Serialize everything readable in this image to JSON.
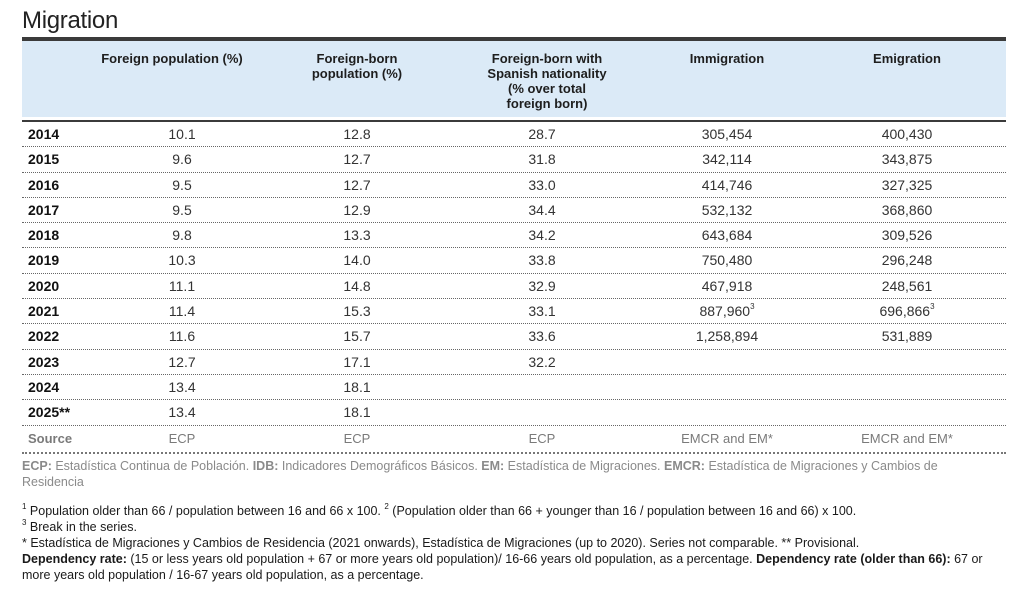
{
  "title": "Migration",
  "headers": {
    "foreign_population": "Foreign population (%)",
    "foreign_born_1": "Foreign-born",
    "foreign_born_2": "population (%)",
    "spanish_1": "Foreign-born with",
    "spanish_2": "Spanish nationality",
    "spanish_3": "(% over total",
    "spanish_4": "foreign born)",
    "immigration": "Immigration",
    "emigration": "Emigration"
  },
  "rows": [
    {
      "year": "2014",
      "fp": "10.1",
      "fb": "12.8",
      "sn": "28.7",
      "im": "305,454",
      "em": "400,430"
    },
    {
      "year": "2015",
      "fp": "9.6",
      "fb": "12.7",
      "sn": "31.8",
      "im": "342,114",
      "em": "343,875"
    },
    {
      "year": "2016",
      "fp": "9.5",
      "fb": "12.7",
      "sn": "33.0",
      "im": "414,746",
      "em": "327,325"
    },
    {
      "year": "2017",
      "fp": "9.5",
      "fb": "12.9",
      "sn": "34.4",
      "im": "532,132",
      "em": "368,860"
    },
    {
      "year": "2018",
      "fp": "9.8",
      "fb": "13.3",
      "sn": "34.2",
      "im": "643,684",
      "em": "309,526"
    },
    {
      "year": "2019",
      "fp": "10.3",
      "fb": "14.0",
      "sn": "33.8",
      "im": "750,480",
      "em": "296,248"
    },
    {
      "year": "2020",
      "fp": "11.1",
      "fb": "14.8",
      "sn": "32.9",
      "im": "467,918",
      "em": "248,561"
    },
    {
      "year": "2021",
      "fp": "11.4",
      "fb": "15.3",
      "sn": "33.1",
      "im": "887,960",
      "im_sup": "3",
      "em": "696,866",
      "em_sup": "3"
    },
    {
      "year": "2022",
      "fp": "11.6",
      "fb": "15.7",
      "sn": "33.6",
      "im": "1,258,894",
      "em": "531,889"
    },
    {
      "year": "2023",
      "fp": "12.7",
      "fb": "17.1",
      "sn": "32.2",
      "im": "",
      "em": ""
    },
    {
      "year": "2024",
      "fp": "13.4",
      "fb": "18.1",
      "sn": "",
      "im": "",
      "em": ""
    },
    {
      "year": "2025**",
      "fp": "13.4",
      "fb": "18.1",
      "sn": "",
      "im": "",
      "em": ""
    }
  ],
  "source": {
    "label": "Source",
    "fp": "ECP",
    "fb": "ECP",
    "sn": "ECP",
    "im": "EMCR and EM*",
    "em": "EMCR and EM*"
  },
  "legend": {
    "ecp_abbr": "ECP:",
    "ecp_text": " Estadística Continua de Población. ",
    "idb_abbr": "IDB:",
    "idb_text": " Indicadores Demográficos Básicos. ",
    "em_abbr": "EM:",
    "em_text": " Estadística de Migraciones. ",
    "emcr_abbr": "EMCR:",
    "emcr_text": " Estadística de Migraciones y Cambios de Residencia"
  },
  "notes": {
    "n1_sup": "1",
    "n1_text": " Population older than 66 / population between 16 and 66 x 100. ",
    "n2_sup": "2",
    "n2_text": " (Population older than 66 + younger than 16 / population between 16 and 66) x 100.",
    "n3_sup": "3",
    "n3_text": " Break in the series.",
    "star_text": "* Estadística de Migraciones y Cambios de Residencia (2021 onwards), Estadística de Migraciones (up to 2020). Series not comparable. ** Provisional.",
    "dep_label": "Dependency rate:",
    "dep_text": " (15 or less years old population + 67 or more years old population)/ 16-66 years old population, as a percentage. ",
    "dep66_label": "Dependency rate (older than 66):",
    "dep66_text": " 67 or more years old population / 16-67 years old population, as a percentage."
  }
}
